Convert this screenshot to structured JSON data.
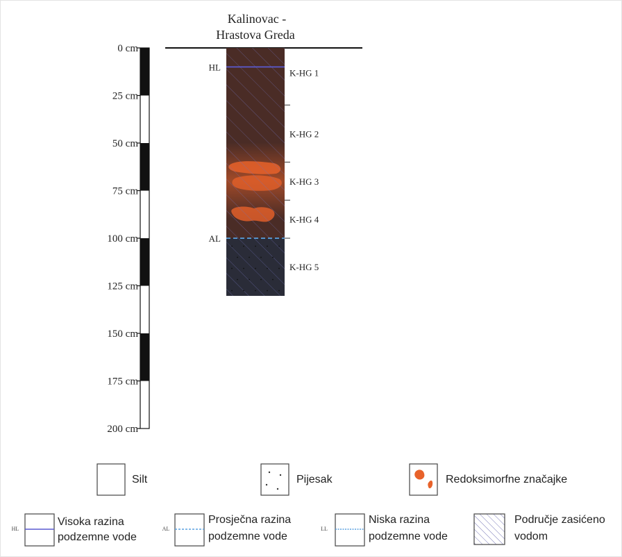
{
  "title_line1": "Kalinovac -",
  "title_line2": "Hrastova Greda",
  "depth_unit": "cm",
  "scale_ticks": [
    "0 cm",
    "25 cm",
    "50 cm",
    "75 cm",
    "100 cm",
    "125 cm",
    "150 cm",
    "175 cm",
    "200 cm"
  ],
  "profile_depth_cm": 130,
  "horizons": [
    {
      "label": "K-HG 1",
      "top_cm": 0,
      "bottom_cm": 30
    },
    {
      "label": "K-HG 2",
      "top_cm": 30,
      "bottom_cm": 60
    },
    {
      "label": "K-HG 3",
      "top_cm": 60,
      "bottom_cm": 80
    },
    {
      "label": "K-HG 4",
      "top_cm": 80,
      "bottom_cm": 100
    },
    {
      "label": "K-HG 5",
      "top_cm": 100,
      "bottom_cm": 130
    }
  ],
  "water_levels": [
    {
      "code": "HL",
      "depth_cm": 10,
      "color": "#5a5ad0"
    },
    {
      "code": "AL",
      "depth_cm": 100,
      "color": "#5aa0e0"
    }
  ],
  "colors": {
    "soil": "#4a2c26",
    "saturated": "#2a2c38",
    "redox": "#e8622a",
    "hatch": "#6b6bb0"
  },
  "legend": {
    "silt": "Silt",
    "sand": "Pijesak",
    "redox": "Redoksimorfne značajke",
    "hl_code": "HL",
    "hl_line1": "Visoka razina",
    "hl_line2": "podzemne vode",
    "al_code": "AL",
    "al_line1": "Prosječna razina",
    "al_line2": "podzemne vode",
    "ll_code": "LL",
    "ll_line1": "Niska razina",
    "ll_line2": "podzemne vode",
    "sat_line1": "Područje zasićeno",
    "sat_line2": "vodom"
  }
}
